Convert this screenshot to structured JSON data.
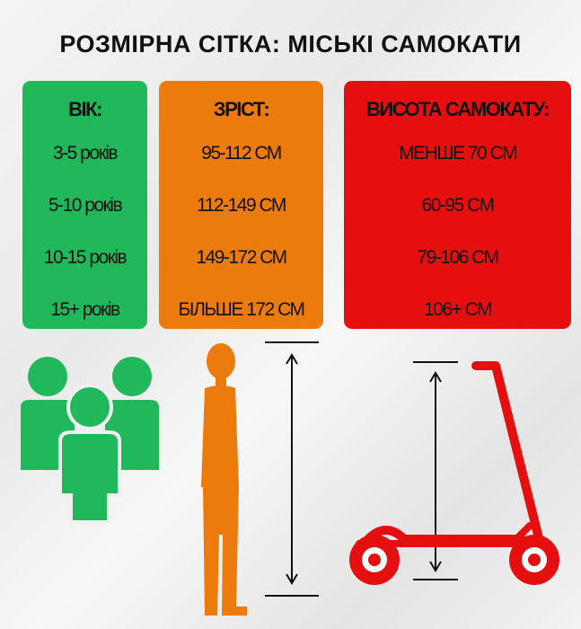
{
  "title": "РОЗМІРНА СІТКА: МІСЬКІ САМОКАТИ",
  "columns": [
    {
      "header": "ВІК:",
      "color": "#20b85a",
      "cells": [
        "3-5 років",
        "5-10 років",
        "10-15 років",
        "15+ років"
      ]
    },
    {
      "header": "ЗРІСТ:",
      "color": "#ec7b0d",
      "cells": [
        "95-112 СМ",
        "112-149 СМ",
        "149-172 СМ",
        "БІЛЬШЕ 172 СМ"
      ]
    },
    {
      "header": "ВИСОТА САМОКАТУ:",
      "color": "#e60f0f",
      "cells": [
        "МЕНШЕ 70 СМ",
        "60-95 СМ",
        "79-106 СМ",
        "106+ СМ"
      ]
    }
  ],
  "icons": [
    "people-group-icon",
    "person-silhouette-icon",
    "height-arrow-icon",
    "scooter-icon"
  ]
}
